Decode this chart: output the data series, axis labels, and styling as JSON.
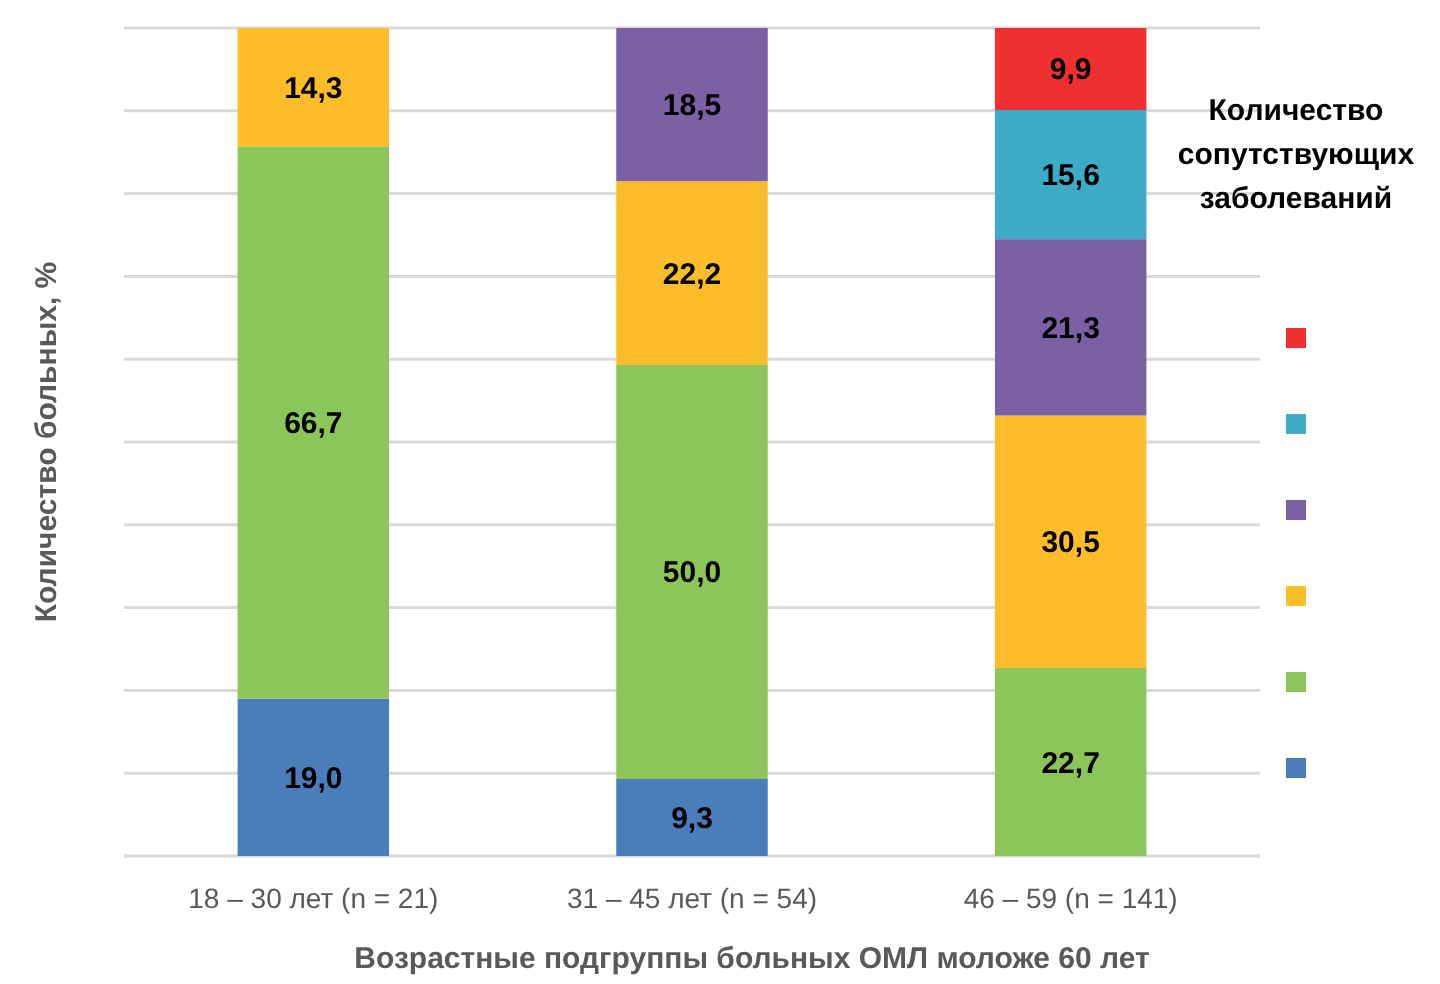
{
  "chart_data": {
    "type": "bar",
    "stacked": true,
    "xlabel": "Возрастные подгруппы больных ОМЛ моложе 60 лет",
    "ylabel": "Количество больных, %",
    "legend_title": "Количество сопутствующих заболеваний",
    "grid": "y",
    "tick_labels": "x",
    "categories": [
      "18 – 30 лет (n = 21)",
      "31 – 45 лет (n = 54)",
      "46 – 59 (n = 141)"
    ],
    "ylim": [
      0,
      100
    ],
    "yticks": [
      {
        "value": 0,
        "label": null
      },
      {
        "value": 10,
        "label": null
      },
      {
        "value": 20,
        "label": null
      },
      {
        "value": 30,
        "label": null
      },
      {
        "value": 40,
        "label": null
      },
      {
        "value": 50,
        "label": null
      },
      {
        "value": 60,
        "label": null
      },
      {
        "value": 70,
        "label": null
      },
      {
        "value": 80,
        "label": null
      },
      {
        "value": 90,
        "label": null
      },
      {
        "value": 100,
        "label": null
      }
    ],
    "series": [
      {
        "color": "#4a7ebb",
        "values": [
          19.0,
          9.3,
          null
        ],
        "value_labels": [
          "19,0",
          "9,3",
          null
        ]
      },
      {
        "color": "#8cc65a",
        "values": [
          66.7,
          50.0,
          22.7
        ],
        "value_labels": [
          "66,7",
          "50,0",
          "22,7"
        ]
      },
      {
        "color": "#fdbd2a",
        "values": [
          14.3,
          22.2,
          30.5
        ],
        "value_labels": [
          "14,3",
          "22,2",
          "30,5"
        ]
      },
      {
        "color": "#7b60a6",
        "values": [
          null,
          18.5,
          21.3
        ],
        "value_labels": [
          null,
          "18,5",
          "21,3"
        ]
      },
      {
        "color": "#3eabc6",
        "values": [
          null,
          null,
          15.6
        ],
        "value_labels": [
          null,
          null,
          "15,6"
        ]
      },
      {
        "color": "#ee3030",
        "values": [
          null,
          null,
          9.9
        ],
        "value_labels": [
          null,
          null,
          "9,9"
        ]
      }
    ]
  }
}
